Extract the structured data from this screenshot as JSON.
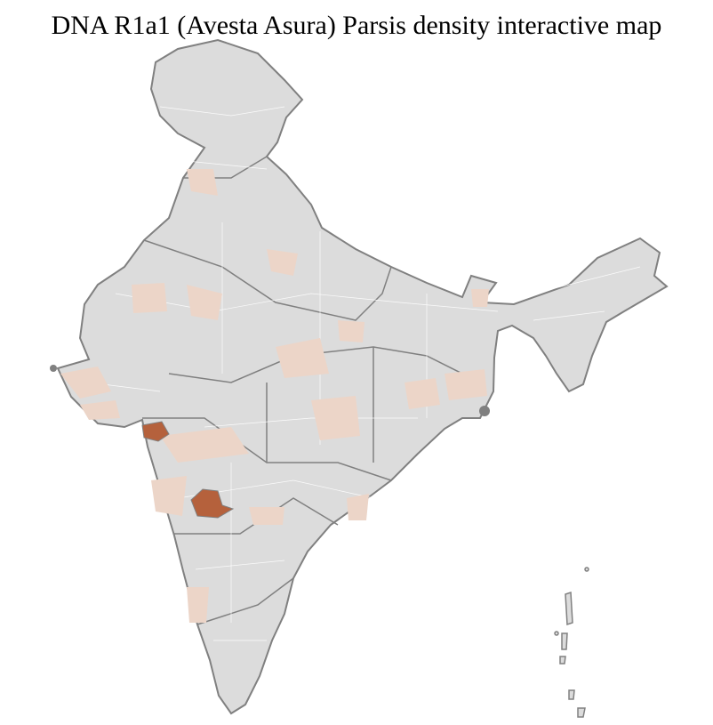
{
  "title": "DNA R1a1 (Avesta Asura) Parsis density interactive map",
  "colors": {
    "background": "#ffffff",
    "region_fill": "#dcdcdc",
    "district_border": "#ffffff",
    "state_border": "#808080",
    "low_density": "#ecd5c8",
    "high_density": "#b5613c"
  },
  "map": {
    "subject": "India districts",
    "highlighted_high_density": [
      "Mumbai region",
      "Pune region"
    ]
  }
}
